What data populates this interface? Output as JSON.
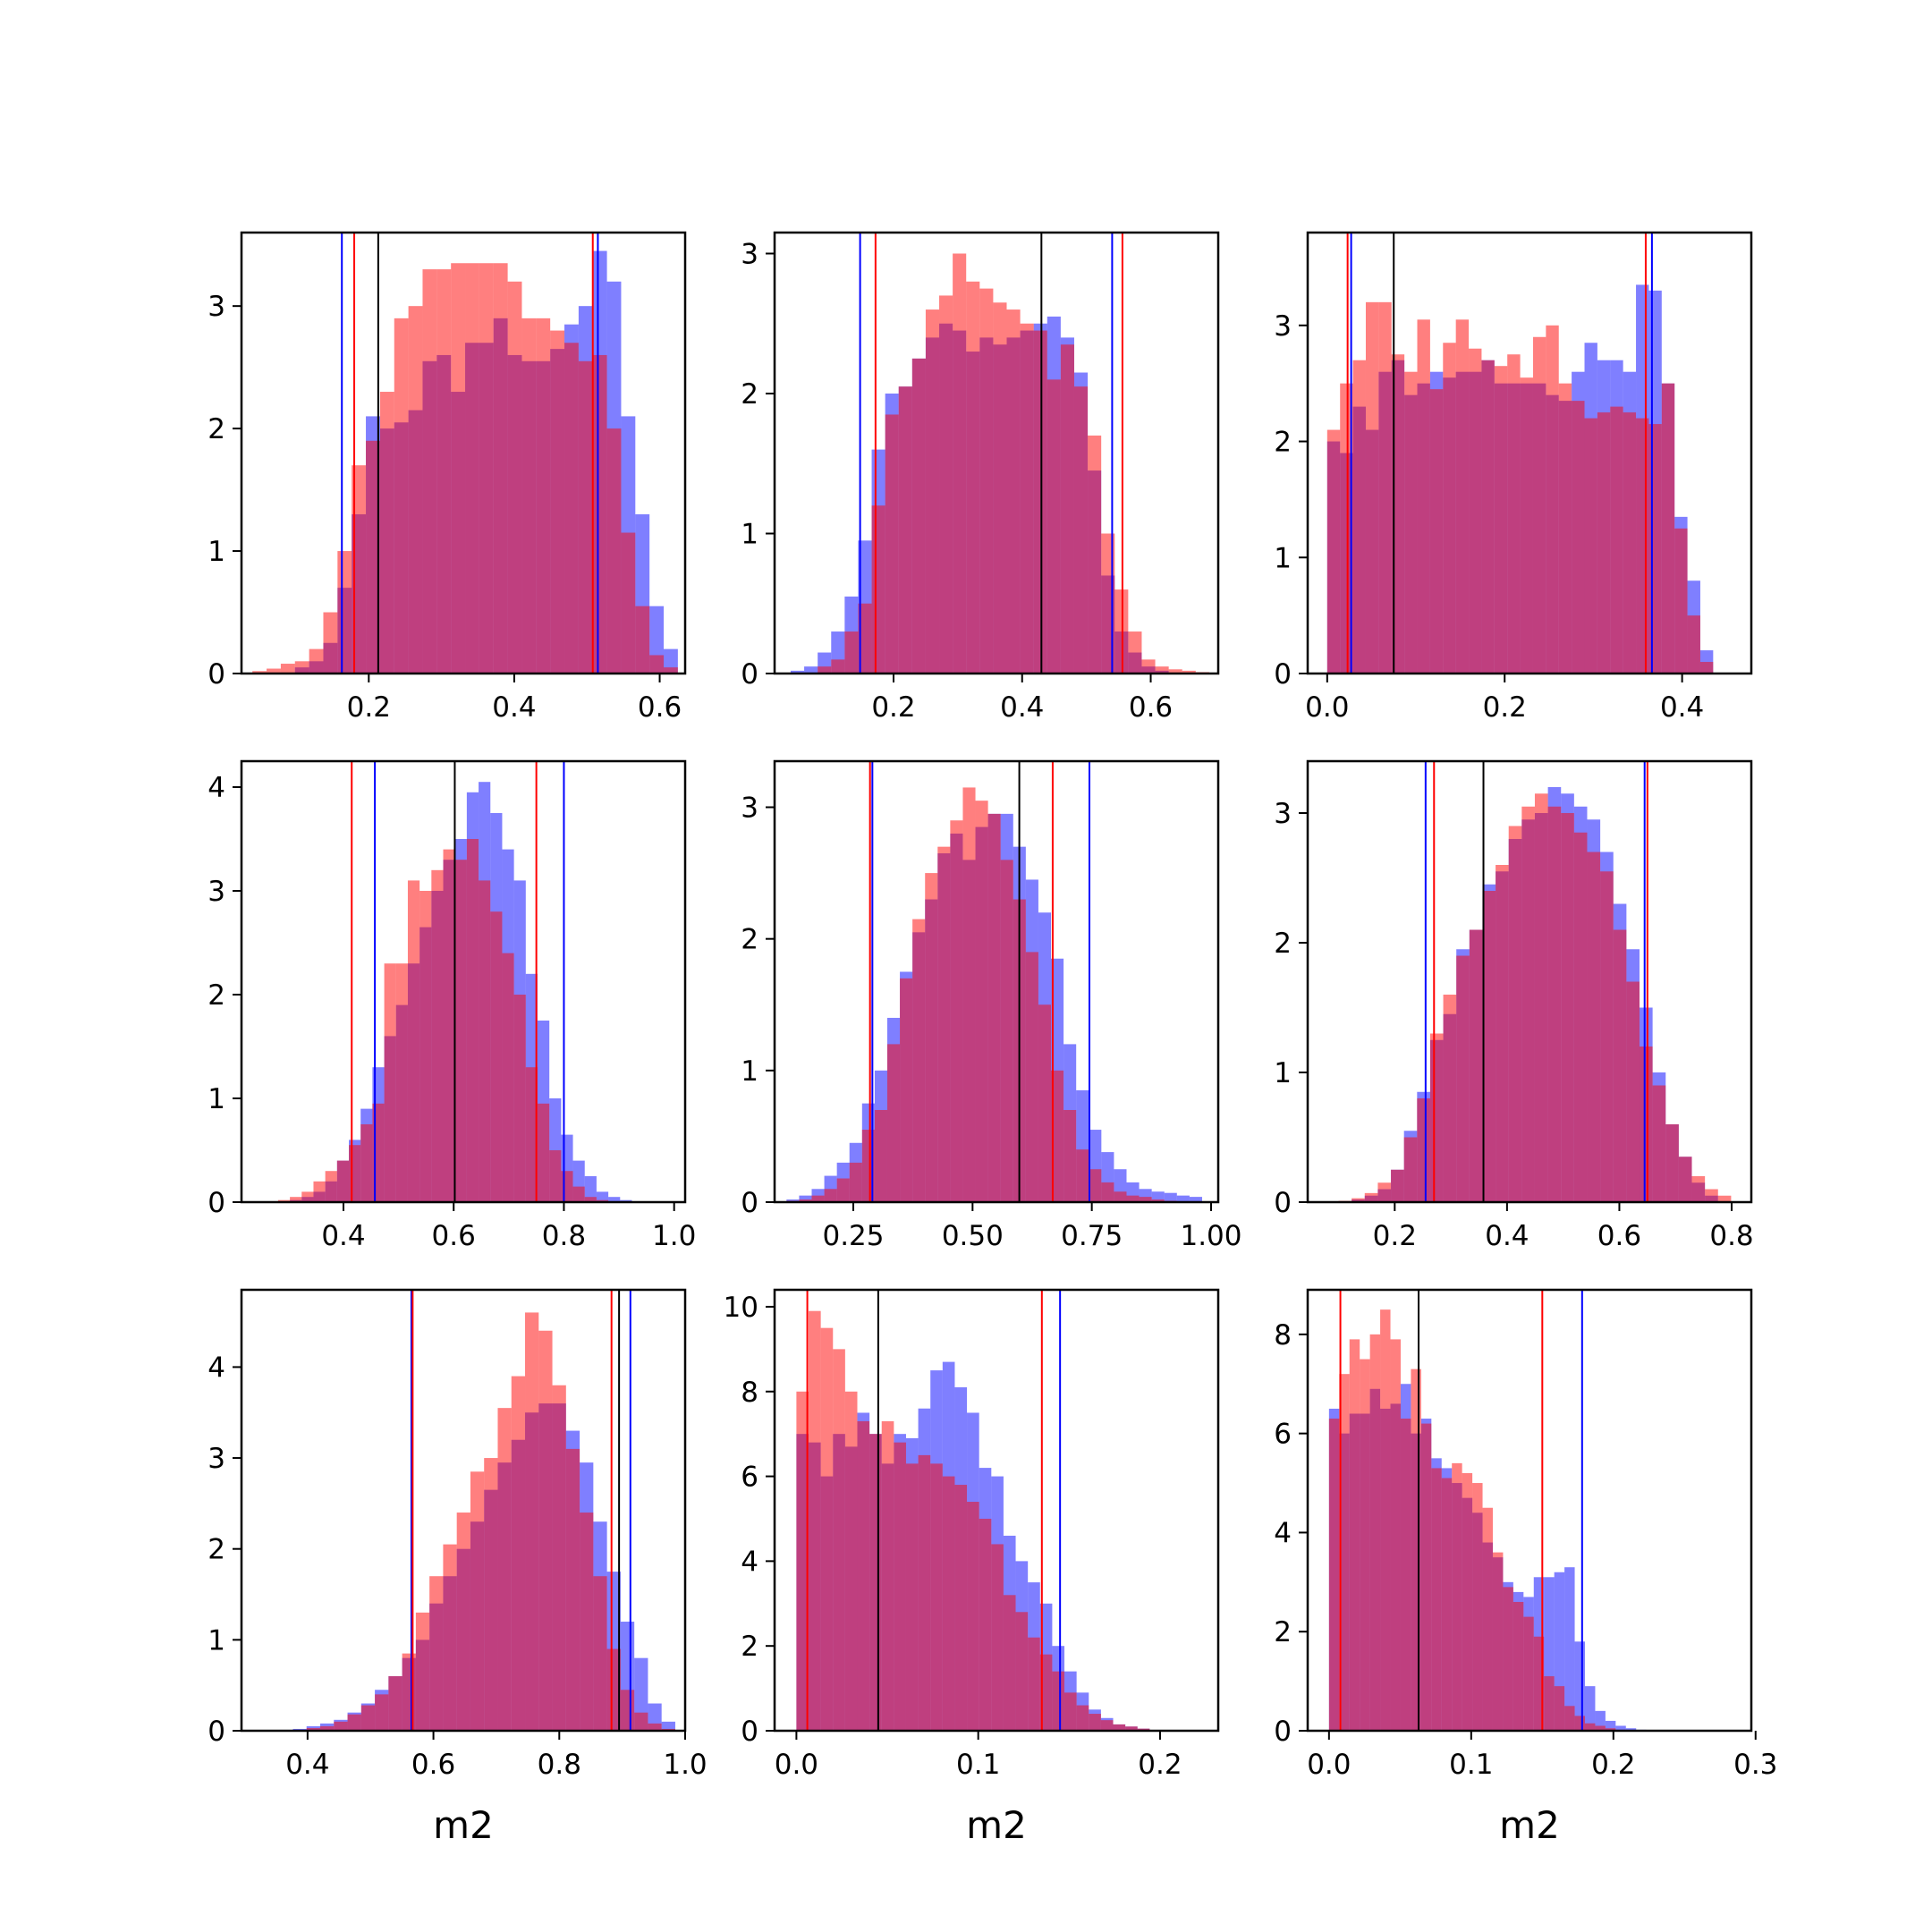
{
  "figure": {
    "background": "#ffffff"
  },
  "colors": {
    "series_a": "#0000ff",
    "series_b": "#ff0000",
    "series_a_alpha": 0.5,
    "series_b_alpha": 0.5,
    "reference_line": "#000000"
  },
  "chart_data": [
    {
      "type": "bar",
      "xlabel": "",
      "xlim": [
        0.025,
        0.635
      ],
      "ylim": [
        0,
        3.6
      ],
      "xticks": [
        0.2,
        0.4,
        0.6
      ],
      "xtick_labels": [
        "0.2",
        "0.4",
        "0.6"
      ],
      "yticks": [
        0,
        1,
        2,
        3
      ],
      "ytick_labels": [
        "0",
        "1",
        "2",
        "3"
      ],
      "bins": {
        "start": 0.04,
        "width": 0.0195,
        "count": 30
      },
      "series": [
        {
          "color": "#0000ff",
          "values": [
            0,
            0,
            0,
            0.05,
            0.1,
            0.25,
            0.7,
            1.3,
            2.1,
            2.0,
            2.05,
            2.15,
            2.55,
            2.6,
            2.3,
            2.7,
            2.7,
            2.9,
            2.6,
            2.55,
            2.55,
            2.65,
            2.85,
            3.0,
            3.45,
            3.2,
            2.1,
            1.3,
            0.55,
            0.2
          ]
        },
        {
          "color": "#ff0000",
          "values": [
            0.02,
            0.04,
            0.08,
            0.1,
            0.2,
            0.5,
            1.0,
            1.7,
            1.9,
            2.3,
            2.9,
            3.0,
            3.3,
            3.3,
            3.35,
            3.35,
            3.35,
            3.35,
            3.2,
            2.9,
            2.9,
            2.8,
            2.7,
            2.55,
            2.6,
            2.0,
            1.15,
            0.55,
            0.15,
            0.05
          ]
        }
      ],
      "vlines": [
        {
          "color": "#0000ff",
          "x": [
            0.163,
            0.515
          ]
        },
        {
          "color": "#ff0000",
          "x": [
            0.18,
            0.508
          ]
        },
        {
          "color": "#000000",
          "x": [
            0.213
          ]
        }
      ]
    },
    {
      "type": "bar",
      "xlabel": "",
      "xlim": [
        0.015,
        0.705
      ],
      "ylim": [
        0,
        3.15
      ],
      "xticks": [
        0.2,
        0.4,
        0.6
      ],
      "xtick_labels": [
        "0.2",
        "0.4",
        "0.6"
      ],
      "yticks": [
        0,
        1,
        2,
        3
      ],
      "ytick_labels": [
        "0",
        "1",
        "2",
        "3"
      ],
      "bins": {
        "start": 0.04,
        "width": 0.021,
        "count": 31
      },
      "series": [
        {
          "color": "#0000ff",
          "values": [
            0.02,
            0.05,
            0.15,
            0.3,
            0.55,
            0.95,
            1.6,
            2.0,
            2.05,
            2.25,
            2.4,
            2.5,
            2.45,
            2.3,
            2.4,
            2.35,
            2.4,
            2.45,
            2.5,
            2.55,
            2.4,
            2.15,
            1.45,
            0.7,
            0.3,
            0.15,
            0.05,
            0.02,
            0,
            0,
            0
          ]
        },
        {
          "color": "#ff0000",
          "values": [
            0,
            0,
            0.05,
            0.1,
            0.3,
            0.5,
            1.2,
            1.85,
            2.05,
            2.25,
            2.6,
            2.7,
            3.0,
            2.8,
            2.75,
            2.65,
            2.6,
            2.5,
            2.45,
            2.1,
            2.35,
            2.05,
            1.7,
            1.0,
            0.6,
            0.3,
            0.1,
            0.05,
            0.03,
            0.02,
            0.01
          ]
        }
      ],
      "vlines": [
        {
          "color": "#0000ff",
          "x": [
            0.148,
            0.54
          ]
        },
        {
          "color": "#ff0000",
          "x": [
            0.172,
            0.556
          ]
        },
        {
          "color": "#000000",
          "x": [
            0.43
          ]
        }
      ]
    },
    {
      "type": "bar",
      "xlabel": "",
      "xlim": [
        -0.022,
        0.478
      ],
      "ylim": [
        0,
        3.8
      ],
      "xticks": [
        0.0,
        0.2,
        0.4
      ],
      "xtick_labels": [
        "0.0",
        "0.2",
        "0.4"
      ],
      "yticks": [
        0,
        1,
        2,
        3
      ],
      "ytick_labels": [
        "0",
        "1",
        "2",
        "3"
      ],
      "bins": {
        "start": 0.0,
        "width": 0.0145,
        "count": 30
      },
      "series": [
        {
          "color": "#0000ff",
          "values": [
            2.0,
            1.9,
            2.3,
            2.1,
            2.6,
            2.7,
            2.4,
            2.5,
            2.6,
            2.55,
            2.6,
            2.6,
            2.7,
            2.5,
            2.5,
            2.5,
            2.5,
            2.4,
            2.35,
            2.6,
            2.85,
            2.7,
            2.7,
            2.6,
            3.35,
            3.3,
            2.5,
            1.35,
            0.8,
            0.2
          ]
        },
        {
          "color": "#ff0000",
          "values": [
            2.1,
            2.5,
            2.7,
            3.2,
            3.2,
            2.75,
            2.6,
            3.05,
            2.45,
            2.85,
            3.05,
            2.8,
            2.7,
            2.65,
            2.75,
            2.55,
            2.9,
            3.0,
            2.5,
            2.35,
            2.2,
            2.25,
            2.3,
            2.25,
            2.2,
            2.15,
            2.5,
            1.25,
            0.5,
            0.1
          ]
        }
      ],
      "vlines": [
        {
          "color": "#0000ff",
          "x": [
            0.027,
            0.366
          ]
        },
        {
          "color": "#ff0000",
          "x": [
            0.023,
            0.359
          ]
        },
        {
          "color": "#000000",
          "x": [
            0.075
          ]
        }
      ]
    },
    {
      "type": "bar",
      "xlabel": "",
      "xlim": [
        0.215,
        1.02
      ],
      "ylim": [
        0,
        4.25
      ],
      "xticks": [
        0.4,
        0.6,
        0.8,
        1.0
      ],
      "xtick_labels": [
        "0.4",
        "0.6",
        "0.8",
        "1.0"
      ],
      "yticks": [
        0,
        1,
        2,
        3,
        4
      ],
      "ytick_labels": [
        "0",
        "1",
        "2",
        "3",
        "4"
      ],
      "bins": {
        "start": 0.26,
        "width": 0.0214,
        "count": 32
      },
      "series": [
        {
          "color": "#0000ff",
          "values": [
            0,
            0,
            0.02,
            0.05,
            0.1,
            0.2,
            0.4,
            0.6,
            0.9,
            1.3,
            1.6,
            1.9,
            2.3,
            2.65,
            3.0,
            3.3,
            3.5,
            3.95,
            4.05,
            3.75,
            3.4,
            3.1,
            2.2,
            1.75,
            1.0,
            0.65,
            0.4,
            0.25,
            0.1,
            0.05,
            0.02,
            0
          ]
        },
        {
          "color": "#ff0000",
          "values": [
            0,
            0.02,
            0.05,
            0.1,
            0.2,
            0.3,
            0.4,
            0.55,
            0.75,
            0.95,
            2.3,
            2.3,
            3.1,
            3.0,
            3.2,
            3.4,
            3.3,
            3.5,
            3.1,
            2.8,
            2.4,
            2.0,
            1.3,
            0.95,
            0.5,
            0.3,
            0.15,
            0.05,
            0.02,
            0,
            0,
            0
          ]
        }
      ],
      "vlines": [
        {
          "color": "#0000ff",
          "x": [
            0.457,
            0.8
          ]
        },
        {
          "color": "#ff0000",
          "x": [
            0.415,
            0.75
          ]
        },
        {
          "color": "#000000",
          "x": [
            0.602
          ]
        }
      ]
    },
    {
      "type": "bar",
      "xlabel": "",
      "xlim": [
        0.085,
        1.015
      ],
      "ylim": [
        0,
        3.35
      ],
      "xticks": [
        0.25,
        0.5,
        0.75,
        1.0
      ],
      "xtick_labels": [
        "0.25",
        "0.50",
        "0.75",
        "1.00"
      ],
      "yticks": [
        0,
        1,
        2,
        3
      ],
      "ytick_labels": [
        "0",
        "1",
        "2",
        "3"
      ],
      "bins": {
        "start": 0.11,
        "width": 0.0264,
        "count": 33
      },
      "series": [
        {
          "color": "#0000ff",
          "values": [
            0.02,
            0.05,
            0.1,
            0.2,
            0.3,
            0.45,
            0.75,
            1.0,
            1.4,
            1.75,
            2.05,
            2.3,
            2.65,
            2.8,
            2.6,
            2.85,
            2.95,
            2.95,
            2.7,
            2.45,
            2.2,
            1.85,
            1.2,
            0.85,
            0.55,
            0.38,
            0.25,
            0.15,
            0.1,
            0.08,
            0.07,
            0.05,
            0.04
          ]
        },
        {
          "color": "#ff0000",
          "values": [
            0.01,
            0.02,
            0.05,
            0.1,
            0.18,
            0.3,
            0.55,
            0.7,
            1.2,
            1.7,
            2.15,
            2.5,
            2.7,
            2.9,
            3.15,
            3.05,
            2.95,
            2.6,
            2.3,
            1.9,
            1.5,
            1.0,
            0.7,
            0.4,
            0.25,
            0.15,
            0.08,
            0.05,
            0.04,
            0.02,
            0.01,
            0,
            0
          ]
        }
      ],
      "vlines": [
        {
          "color": "#0000ff",
          "x": [
            0.29,
            0.745
          ]
        },
        {
          "color": "#ff0000",
          "x": [
            0.285,
            0.668
          ]
        },
        {
          "color": "#000000",
          "x": [
            0.598
          ]
        }
      ]
    },
    {
      "type": "bar",
      "xlabel": "",
      "xlim": [
        0.045,
        0.835
      ],
      "ylim": [
        0,
        3.4
      ],
      "xticks": [
        0.2,
        0.4,
        0.6,
        0.8
      ],
      "xtick_labels": [
        "0.2",
        "0.4",
        "0.6",
        "0.8"
      ],
      "yticks": [
        0,
        1,
        2,
        3
      ],
      "ytick_labels": [
        "0",
        "1",
        "2",
        "3"
      ],
      "bins": {
        "start": 0.1,
        "width": 0.0233,
        "count": 30
      },
      "series": [
        {
          "color": "#0000ff",
          "values": [
            0,
            0.02,
            0.05,
            0.1,
            0.25,
            0.55,
            0.85,
            1.25,
            1.45,
            1.95,
            2.1,
            2.45,
            2.55,
            2.8,
            2.95,
            3.0,
            3.2,
            3.15,
            3.05,
            2.95,
            2.7,
            2.3,
            1.95,
            1.5,
            1.0,
            0.6,
            0.35,
            0.15,
            0.05,
            0
          ]
        },
        {
          "color": "#ff0000",
          "values": [
            0.01,
            0.03,
            0.07,
            0.15,
            0.25,
            0.5,
            0.8,
            1.3,
            1.6,
            1.9,
            2.1,
            2.4,
            2.6,
            2.9,
            3.05,
            3.15,
            3.05,
            3.0,
            2.85,
            2.7,
            2.55,
            2.1,
            1.7,
            1.2,
            0.9,
            0.6,
            0.35,
            0.2,
            0.1,
            0.05
          ]
        }
      ],
      "vlines": [
        {
          "color": "#0000ff",
          "x": [
            0.255,
            0.645
          ]
        },
        {
          "color": "#ff0000",
          "x": [
            0.27,
            0.65
          ]
        },
        {
          "color": "#000000",
          "x": [
            0.358
          ]
        }
      ]
    },
    {
      "type": "bar",
      "xlabel": "m2",
      "xlim": [
        0.295,
        1.0
      ],
      "ylim": [
        0,
        4.85
      ],
      "xticks": [
        0.4,
        0.6,
        0.8,
        1.0
      ],
      "xtick_labels": [
        "0.4",
        "0.6",
        "0.8",
        "1.0"
      ],
      "yticks": [
        0,
        1,
        2,
        3,
        4
      ],
      "ytick_labels": [
        "0",
        "1",
        "2",
        "3",
        "4"
      ],
      "bins": {
        "start": 0.355,
        "width": 0.0217,
        "count": 29
      },
      "series": [
        {
          "color": "#0000ff",
          "values": [
            0.01,
            0.02,
            0.05,
            0.08,
            0.12,
            0.2,
            0.3,
            0.45,
            0.6,
            0.8,
            1.0,
            1.4,
            1.7,
            2.0,
            2.3,
            2.65,
            2.95,
            3.2,
            3.5,
            3.6,
            3.6,
            3.3,
            2.95,
            2.3,
            1.75,
            1.2,
            0.8,
            0.3,
            0.1
          ]
        },
        {
          "color": "#ff0000",
          "values": [
            0,
            0.01,
            0.03,
            0.05,
            0.1,
            0.18,
            0.28,
            0.4,
            0.6,
            0.85,
            1.3,
            1.7,
            2.05,
            2.4,
            2.85,
            3.0,
            3.55,
            3.9,
            4.6,
            4.4,
            3.8,
            3.1,
            2.4,
            1.7,
            0.9,
            0.45,
            0.2,
            0.08,
            0.02
          ]
        }
      ],
      "vlines": [
        {
          "color": "#0000ff",
          "x": [
            0.565,
            0.913
          ]
        },
        {
          "color": "#ff0000",
          "x": [
            0.567,
            0.883
          ]
        },
        {
          "color": "#000000",
          "x": [
            0.895
          ]
        }
      ]
    },
    {
      "type": "bar",
      "xlabel": "m2",
      "xlim": [
        -0.012,
        0.232
      ],
      "ylim": [
        0,
        10.4
      ],
      "xticks": [
        0.0,
        0.1,
        0.2
      ],
      "xtick_labels": [
        "0.0",
        "0.1",
        "0.2"
      ],
      "yticks": [
        0,
        2,
        4,
        6,
        8,
        10
      ],
      "ytick_labels": [
        "0",
        "2",
        "4",
        "6",
        "8",
        "10"
      ],
      "bins": {
        "start": 0.0,
        "width": 0.0067,
        "count": 30
      },
      "series": [
        {
          "color": "#0000ff",
          "values": [
            7.0,
            6.8,
            6.0,
            7.0,
            6.7,
            7.5,
            7.0,
            6.3,
            7.0,
            6.9,
            7.6,
            8.5,
            8.7,
            8.1,
            7.5,
            6.2,
            6.0,
            4.6,
            4.0,
            3.5,
            3.0,
            2.0,
            1.4,
            0.9,
            0.5,
            0.3,
            0.15,
            0.1,
            0.05,
            0.02
          ]
        },
        {
          "color": "#ff0000",
          "values": [
            8.0,
            9.9,
            9.5,
            9.0,
            8.0,
            7.3,
            7.0,
            7.3,
            6.8,
            6.3,
            6.5,
            6.3,
            6.0,
            5.8,
            5.4,
            5.0,
            4.4,
            3.2,
            2.8,
            2.2,
            1.8,
            1.4,
            0.9,
            0.6,
            0.4,
            0.25,
            0.15,
            0.1,
            0.05,
            0.02
          ]
        }
      ],
      "vlines": [
        {
          "color": "#0000ff",
          "x": [
            0.145
          ]
        },
        {
          "color": "#ff0000",
          "x": [
            0.006,
            0.135
          ]
        },
        {
          "color": "#000000",
          "x": [
            0.045
          ]
        }
      ]
    },
    {
      "type": "bar",
      "xlabel": "m2",
      "xlim": [
        -0.015,
        0.297
      ],
      "ylim": [
        0,
        8.9
      ],
      "xticks": [
        0.0,
        0.1,
        0.2,
        0.3
      ],
      "xtick_labels": [
        "0.0",
        "0.1",
        "0.2",
        "0.3"
      ],
      "yticks": [
        0,
        2,
        4,
        6,
        8
      ],
      "ytick_labels": [
        "0",
        "2",
        "4",
        "6",
        "8"
      ],
      "bins": {
        "start": 0.0,
        "width": 0.0072,
        "count": 33
      },
      "series": [
        {
          "color": "#0000ff",
          "values": [
            6.5,
            6.0,
            6.4,
            6.4,
            6.9,
            6.5,
            6.6,
            7.0,
            6.0,
            6.3,
            5.5,
            5.3,
            5.0,
            4.7,
            4.4,
            3.8,
            3.5,
            3.0,
            2.8,
            2.7,
            3.1,
            3.1,
            3.2,
            3.3,
            1.8,
            0.9,
            0.4,
            0.2,
            0.1,
            0.05,
            0.02,
            0.01,
            0
          ]
        },
        {
          "color": "#ff0000",
          "values": [
            6.3,
            7.2,
            7.9,
            7.5,
            8.0,
            8.5,
            7.9,
            6.3,
            7.3,
            6.2,
            5.3,
            5.1,
            5.4,
            5.2,
            5.0,
            4.5,
            3.6,
            2.9,
            2.6,
            2.3,
            1.9,
            1.1,
            0.9,
            0.5,
            0.3,
            0.15,
            0.1,
            0.05,
            0.02,
            0.01,
            0,
            0,
            0
          ]
        }
      ],
      "vlines": [
        {
          "color": "#0000ff",
          "x": [
            0.178
          ]
        },
        {
          "color": "#ff0000",
          "x": [
            0.008,
            0.15
          ]
        },
        {
          "color": "#000000",
          "x": [
            0.063
          ]
        }
      ]
    }
  ]
}
